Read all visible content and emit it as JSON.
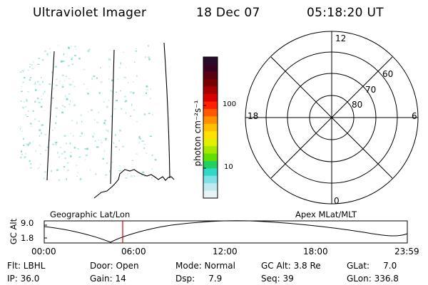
{
  "header": {
    "instrument": "Ultraviolet Imager",
    "date": "18 Dec 07",
    "time": "05:18:20 UT"
  },
  "colorbar": {
    "unit_label": "photon cm⁻²s⁻¹",
    "ticks": [
      "100",
      "10"
    ],
    "colors": [
      "#2a0a2a",
      "#3a0020",
      "#5a0010",
      "#7a0000",
      "#a80000",
      "#d80000",
      "#ff2000",
      "#ff5800",
      "#ff9000",
      "#ffc000",
      "#ffe000",
      "#e0f000",
      "#a8e800",
      "#60e000",
      "#20d060",
      "#30d8c8",
      "#80e0e8",
      "#c0eaf0",
      "#e6f4f6"
    ]
  },
  "polar_plot": {
    "ring_labels": [
      "80",
      "70",
      "60"
    ],
    "mlt_labels": {
      "top": "12",
      "bottom": "0",
      "left": "18",
      "right": "6"
    }
  },
  "timeline": {
    "y_title": "GC Alt",
    "y_ticks": [
      "9.0",
      "1.8"
    ],
    "left_caption": "Geographic Lat/Lon",
    "right_caption": "Apex MLat/MLT",
    "x_ticks": [
      "00:00",
      "06:00",
      "12:00",
      "18:00",
      "23:59"
    ],
    "marker_color": "#dd0000"
  },
  "status": {
    "flt": "Flt: LBHL",
    "ip": "IP: 36.0",
    "door": "Door: Open",
    "gain": "Gain: 14",
    "mode": "Mode: Normal",
    "dsp": "Dsp:     7.9",
    "gc_alt": "GC Alt: 3.8 Re",
    "seq": "Seq: 39",
    "glat": "GLat:     7.0",
    "glon": "GLon: 336.8"
  }
}
